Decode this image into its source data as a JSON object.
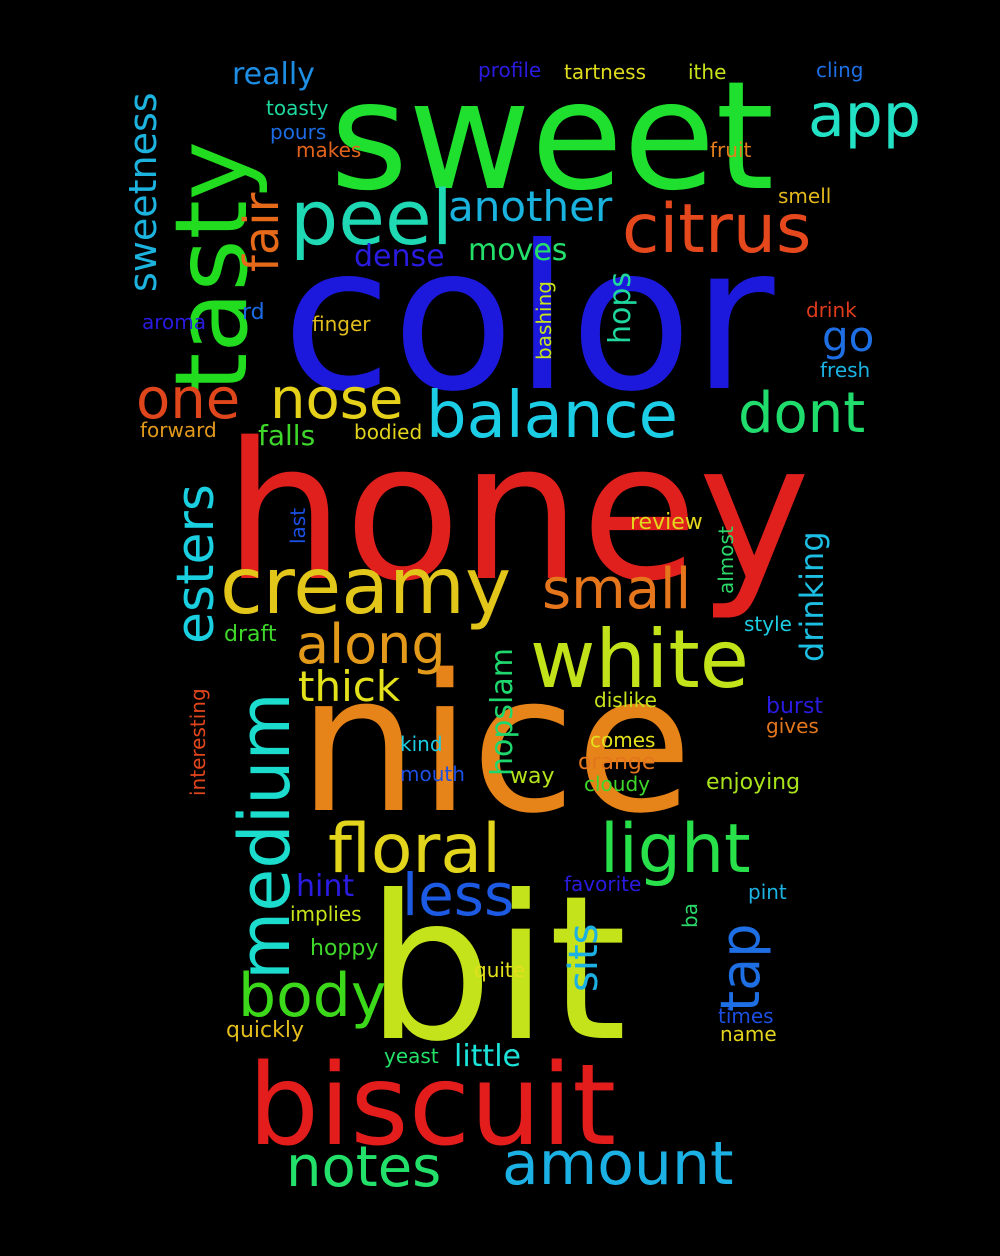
{
  "words": [
    {
      "text": "sweet",
      "color": "#1fe02f"
    },
    {
      "text": "color",
      "color": "#1c19dc"
    },
    {
      "text": "honey",
      "color": "#e0201c"
    },
    {
      "text": "nice",
      "color": "#e68319"
    },
    {
      "text": "bit",
      "color": "#c4e31b"
    },
    {
      "text": "biscuit",
      "color": "#e31c1c"
    },
    {
      "text": "tasty",
      "color": "#22dc20"
    },
    {
      "text": "peel",
      "color": "#1fd8b4"
    },
    {
      "text": "citrus",
      "color": "#e4481c"
    },
    {
      "text": "app",
      "color": "#23e1c4"
    },
    {
      "text": "fair",
      "color": "#e66a1a"
    },
    {
      "text": "another",
      "color": "#1ab3df"
    },
    {
      "text": "sweetness",
      "color": "#1cb3df"
    },
    {
      "text": "really",
      "color": "#1e8ee4"
    },
    {
      "text": "creamy",
      "color": "#e3c61a"
    },
    {
      "text": "balance",
      "color": "#1ccde6"
    },
    {
      "text": "white",
      "color": "#c2e31a"
    },
    {
      "text": "medium",
      "color": "#1cdccd"
    },
    {
      "text": "floral",
      "color": "#e3d51c"
    },
    {
      "text": "light",
      "color": "#27e04a"
    },
    {
      "text": "body",
      "color": "#3cd81a"
    },
    {
      "text": "less",
      "color": "#1d5ae3"
    },
    {
      "text": "amount",
      "color": "#1cb1e4"
    },
    {
      "text": "notes",
      "color": "#22e06a"
    },
    {
      "text": "one",
      "color": "#e0461c"
    },
    {
      "text": "nose",
      "color": "#e5d11a"
    },
    {
      "text": "dont",
      "color": "#1fdc6c"
    },
    {
      "text": "esters",
      "color": "#1ad0e0"
    },
    {
      "text": "small",
      "color": "#e6761c"
    },
    {
      "text": "along",
      "color": "#e39a1a"
    },
    {
      "text": "thick",
      "color": "#e3e01c"
    },
    {
      "text": "go",
      "color": "#1e6fe4"
    },
    {
      "text": "tap",
      "color": "#1e6ee4"
    },
    {
      "text": "sits",
      "color": "#1cb0e3"
    },
    {
      "text": "drinking",
      "color": "#1cbfe3"
    },
    {
      "text": "hopslam",
      "color": "#1ed86e"
    },
    {
      "text": "moves",
      "color": "#23e06a"
    },
    {
      "text": "dense",
      "color": "#2a1be0"
    },
    {
      "text": "hops",
      "color": "#1ed89e"
    },
    {
      "text": "falls",
      "color": "#3ed82a"
    },
    {
      "text": "hint",
      "color": "#2a1ce0"
    },
    {
      "text": "little",
      "color": "#1ce3d9"
    },
    {
      "text": "profile",
      "color": "#2b1be0"
    },
    {
      "text": "tartness",
      "color": "#dfdc1e"
    },
    {
      "text": "ithe",
      "color": "#c8e31a"
    },
    {
      "text": "cling",
      "color": "#1e6fe4"
    },
    {
      "text": "toasty",
      "color": "#1ed89e"
    },
    {
      "text": "pours",
      "color": "#1c6ce3"
    },
    {
      "text": "makes",
      "color": "#e3631c"
    },
    {
      "text": "fruit",
      "color": "#e37f1c"
    },
    {
      "text": "smell",
      "color": "#e3b81c"
    },
    {
      "text": "drink",
      "color": "#e03b1c"
    },
    {
      "text": "fresh",
      "color": "#1cb3e3"
    },
    {
      "text": "aroma",
      "color": "#2a1be0"
    },
    {
      "text": "rd",
      "color": "#1c6ce3"
    },
    {
      "text": "finger",
      "color": "#e3bd1c"
    },
    {
      "text": "bashing",
      "color": "#c8e31a"
    },
    {
      "text": "forward",
      "color": "#e39a1c"
    },
    {
      "text": "bodied",
      "color": "#e3d51c"
    },
    {
      "text": "last",
      "color": "#1c4fe3"
    },
    {
      "text": "review",
      "color": "#e3d51c"
    },
    {
      "text": "almost",
      "color": "#2bd86a"
    },
    {
      "text": "draft",
      "color": "#3ed82a"
    },
    {
      "text": "style",
      "color": "#1ccde3"
    },
    {
      "text": "interesting",
      "color": "#e3461c"
    },
    {
      "text": "dislike",
      "color": "#c8e31a"
    },
    {
      "text": "burst",
      "color": "#2a1be0"
    },
    {
      "text": "gives",
      "color": "#e3761c"
    },
    {
      "text": "kind",
      "color": "#1ccde3"
    },
    {
      "text": "comes",
      "color": "#e3e01c"
    },
    {
      "text": "mouth",
      "color": "#1c4fe3"
    },
    {
      "text": "orange",
      "color": "#e3761c"
    },
    {
      "text": "way",
      "color": "#b4e31c"
    },
    {
      "text": "cloudy",
      "color": "#3ed82a"
    },
    {
      "text": "enjoying",
      "color": "#a8e31c"
    },
    {
      "text": "favorite",
      "color": "#2a1be0"
    },
    {
      "text": "pint",
      "color": "#1cb3e3"
    },
    {
      "text": "ba",
      "color": "#2bd86a"
    },
    {
      "text": "implies",
      "color": "#c8e31a"
    },
    {
      "text": "hoppy",
      "color": "#3ed82a"
    },
    {
      "text": "quite",
      "color": "#e3e01c"
    },
    {
      "text": "times",
      "color": "#1c4fe3"
    },
    {
      "text": "name",
      "color": "#e3d51c"
    },
    {
      "text": "quickly",
      "color": "#e3bd1c"
    },
    {
      "text": "yeast",
      "color": "#23e06a"
    }
  ]
}
